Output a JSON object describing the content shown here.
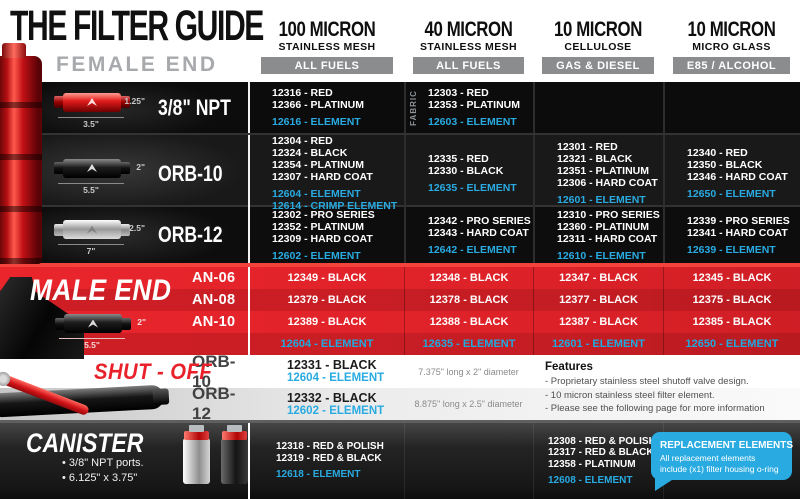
{
  "colors": {
    "accent_blue": "#29abe2",
    "brand_red": "#e31e26"
  },
  "header": {
    "title": "THE FILTER GUIDE",
    "subtitle": "FEMALE END",
    "columns": [
      {
        "micron": "100 MICRON",
        "media": "STAINLESS MESH",
        "badge": "ALL FUELS"
      },
      {
        "micron": "40 MICRON",
        "media": "STAINLESS MESH",
        "badge": "ALL FUELS"
      },
      {
        "micron": "10 MICRON",
        "media": "CELLULOSE",
        "badge": "GAS & DIESEL"
      },
      {
        "micron": "10 MICRON",
        "media": "MICRO GLASS",
        "badge": "E85 / ALCOHOL"
      }
    ]
  },
  "female": {
    "rows": [
      {
        "label": "3/8\" NPT",
        "height_dim": "1.25\"",
        "width_dim": "3.5\"",
        "cols": [
          {
            "parts": [
              "12316 - RED",
              "12366 - PLATINUM"
            ],
            "elements": [
              "12616 - ELEMENT"
            ],
            "note": ""
          },
          {
            "parts": [
              "12303 - RED",
              "12353 - PLATINUM"
            ],
            "elements": [
              "12603 - ELEMENT"
            ],
            "note": "FABRIC"
          },
          {
            "parts": [],
            "elements": [],
            "note": ""
          },
          {
            "parts": [],
            "elements": [],
            "note": ""
          }
        ]
      },
      {
        "label": "ORB-10",
        "height_dim": "2\"",
        "width_dim": "5.5\"",
        "cols": [
          {
            "parts": [
              "12304 - RED",
              "12324 - BLACK",
              "12354 - PLATINUM",
              "12307 - HARD COAT"
            ],
            "elements": [
              "12604 - ELEMENT",
              "12614 - CRIMP ELEMENT"
            ],
            "note": ""
          },
          {
            "parts": [
              "12335 - RED",
              "12330 - BLACK"
            ],
            "elements": [
              "12635 - ELEMENT"
            ],
            "note": ""
          },
          {
            "parts": [
              "12301 - RED",
              "12321 - BLACK",
              "12351 - PLATINUM",
              "12306 - HARD COAT"
            ],
            "elements": [
              "12601 - ELEMENT"
            ],
            "note": ""
          },
          {
            "parts": [
              "12340 - RED",
              "12350 - BLACK",
              "12346 - HARD COAT"
            ],
            "elements": [
              "12650 - ELEMENT"
            ],
            "note": ""
          }
        ]
      },
      {
        "label": "ORB-12",
        "height_dim": "2.5\"",
        "width_dim": "7\"",
        "cols": [
          {
            "parts": [
              "12302 - PRO SERIES",
              "12352 - PLATINUM",
              "12309 - HARD COAT"
            ],
            "elements": [
              "12602 - ELEMENT"
            ],
            "note": ""
          },
          {
            "parts": [
              "12342 - PRO SERIES",
              "12343 - HARD COAT"
            ],
            "elements": [
              "12642 - ELEMENT"
            ],
            "note": ""
          },
          {
            "parts": [
              "12310 - PRO SERIES",
              "12360 - PLATINUM",
              "12311 - HARD COAT"
            ],
            "elements": [
              "12610 - ELEMENT"
            ],
            "note": ""
          },
          {
            "parts": [
              "12339 - PRO SERIES",
              "12341 - HARD COAT"
            ],
            "elements": [
              "12639 - ELEMENT"
            ],
            "note": ""
          }
        ]
      }
    ]
  },
  "male": {
    "title": "MALE END",
    "height_dim": "2\"",
    "width_dim": "5.5\"",
    "rows": [
      {
        "label": "AN-06",
        "cols": [
          "12349 - BLACK",
          "12348 - BLACK",
          "12347 - BLACK",
          "12345 - BLACK"
        ]
      },
      {
        "label": "AN-08",
        "cols": [
          "12379 - BLACK",
          "12378 - BLACK",
          "12377 - BLACK",
          "12375 - BLACK"
        ]
      },
      {
        "label": "AN-10",
        "cols": [
          "12389 - BLACK",
          "12388 - BLACK",
          "12387 - BLACK",
          "12385 - BLACK"
        ]
      }
    ],
    "elements": [
      "12604 - ELEMENT",
      "12635 - ELEMENT",
      "12601 - ELEMENT",
      "12650 - ELEMENT"
    ]
  },
  "shutoff": {
    "title": "SHUT - OFF",
    "rows": [
      {
        "label": "ORB-10",
        "part": "12331 - BLACK",
        "element": "12604 - ELEMENT",
        "desc": "7.375\" long x 2\" diameter"
      },
      {
        "label": "ORB-12",
        "part": "12332 - BLACK",
        "element": "12602 - ELEMENT",
        "desc": "8.875\" long x 2.5\" diameter"
      }
    ],
    "features_title": "Features",
    "features": [
      "- Proprietary stainless steel shutoff valve design.",
      "- 10 micron stainless steel filter element.",
      "- Please see the following page for more information"
    ]
  },
  "canister": {
    "title": "CANISTER",
    "bullets": [
      "• 3/8\" NPT ports.",
      "• 6.125\" x 3.75\""
    ],
    "cols": [
      {
        "parts": [
          "12318 - RED & POLISH",
          "12319 - RED & BLACK"
        ],
        "elements": [
          "12618 - ELEMENT"
        ]
      },
      {
        "parts": [],
        "elements": []
      },
      {
        "parts": [
          "12308 - RED & POLISH",
          "12317 - RED & BLACK",
          "12358 - PLATINUM"
        ],
        "elements": [
          "12608 - ELEMENT"
        ]
      },
      {
        "parts": [],
        "elements": []
      }
    ],
    "callout": {
      "title": "REPLACEMENT ELEMENTS",
      "body": "All replacement elements include (x1) filter housing o-ring"
    }
  }
}
